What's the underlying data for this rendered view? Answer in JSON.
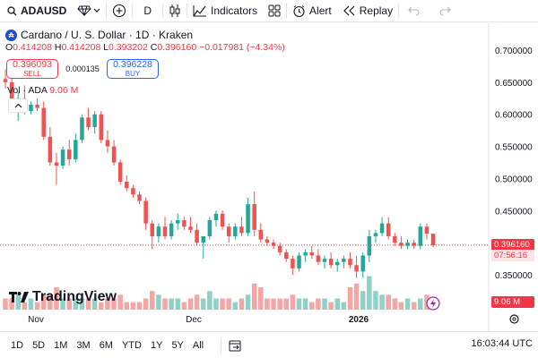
{
  "toolbar": {
    "symbol": "ADAUSD",
    "interval": "D",
    "indicators_label": "Indicators",
    "alert_label": "Alert",
    "replay_label": "Replay"
  },
  "legend": {
    "title": "Cardano / U. S. Dollar · 1D · Kraken",
    "open_label": "O",
    "open": "0.414208",
    "high_label": "H",
    "high": "0.414208",
    "low_label": "L",
    "low": "0.393202",
    "close_label": "C",
    "close": "0.396160",
    "change": "−0.017981 (−4.34%)",
    "logo_letter": "₳"
  },
  "trade": {
    "sell_price": "0.396093",
    "sell_label": "SELL",
    "spread": "0.000135",
    "buy_price": "0.396228",
    "buy_label": "BUY"
  },
  "volume_legend": {
    "label": "Vol · ADA",
    "value": "9.06 M"
  },
  "price_axis": [
    "0.700000",
    "0.650000",
    "0.600000",
    "0.550000",
    "0.500000",
    "0.450000",
    "0.350000"
  ],
  "tags": {
    "last_price": "0.396160",
    "countdown": "07:56:16",
    "volume": "9.06 M"
  },
  "time_axis": [
    "Nov",
    "Dec",
    "2026"
  ],
  "watermark": "TradingView",
  "ranges": [
    "1D",
    "5D",
    "1M",
    "3M",
    "6M",
    "YTD",
    "1Y",
    "5Y",
    "All"
  ],
  "clock": "16:03:44 UTC",
  "colors": {
    "up": "#26a69a",
    "down": "#ef5350",
    "up_vol": "#8fd0c7",
    "down_vol": "#f5a5a3"
  },
  "chart_data": {
    "type": "candlestick",
    "price_range": [
      0.3,
      0.72
    ],
    "candles": [
      [
        0.655,
        0.67,
        0.64,
        0.65
      ],
      [
        0.65,
        0.66,
        0.61,
        0.615
      ],
      [
        0.615,
        0.635,
        0.59,
        0.625
      ],
      [
        0.625,
        0.645,
        0.6,
        0.605
      ],
      [
        0.605,
        0.62,
        0.6,
        0.615
      ],
      [
        0.615,
        0.625,
        0.605,
        0.61
      ],
      [
        0.61,
        0.62,
        0.56,
        0.565
      ],
      [
        0.565,
        0.58,
        0.52,
        0.525
      ],
      [
        0.525,
        0.54,
        0.49,
        0.52
      ],
      [
        0.52,
        0.55,
        0.515,
        0.545
      ],
      [
        0.545,
        0.56,
        0.52,
        0.53
      ],
      [
        0.53,
        0.57,
        0.525,
        0.56
      ],
      [
        0.56,
        0.6,
        0.555,
        0.595
      ],
      [
        0.595,
        0.61,
        0.575,
        0.58
      ],
      [
        0.58,
        0.605,
        0.57,
        0.6
      ],
      [
        0.6,
        0.605,
        0.555,
        0.56
      ],
      [
        0.56,
        0.575,
        0.54,
        0.55
      ],
      [
        0.55,
        0.56,
        0.52,
        0.525
      ],
      [
        0.525,
        0.53,
        0.49,
        0.495
      ],
      [
        0.495,
        0.505,
        0.48,
        0.485
      ],
      [
        0.485,
        0.49,
        0.47,
        0.475
      ],
      [
        0.475,
        0.48,
        0.46,
        0.465
      ],
      [
        0.465,
        0.47,
        0.42,
        0.43
      ],
      [
        0.43,
        0.435,
        0.39,
        0.41
      ],
      [
        0.41,
        0.43,
        0.4,
        0.425
      ],
      [
        0.425,
        0.44,
        0.405,
        0.41
      ],
      [
        0.41,
        0.435,
        0.405,
        0.43
      ],
      [
        0.43,
        0.445,
        0.42,
        0.435
      ],
      [
        0.435,
        0.44,
        0.42,
        0.425
      ],
      [
        0.425,
        0.44,
        0.415,
        0.42
      ],
      [
        0.42,
        0.43,
        0.395,
        0.4
      ],
      [
        0.4,
        0.41,
        0.375,
        0.41
      ],
      [
        0.41,
        0.44,
        0.405,
        0.435
      ],
      [
        0.435,
        0.45,
        0.425,
        0.445
      ],
      [
        0.445,
        0.45,
        0.42,
        0.425
      ],
      [
        0.425,
        0.43,
        0.4,
        0.41
      ],
      [
        0.41,
        0.43,
        0.405,
        0.425
      ],
      [
        0.425,
        0.44,
        0.41,
        0.415
      ],
      [
        0.415,
        0.47,
        0.41,
        0.46
      ],
      [
        0.46,
        0.48,
        0.41,
        0.42
      ],
      [
        0.42,
        0.43,
        0.4,
        0.405
      ],
      [
        0.405,
        0.41,
        0.395,
        0.4
      ],
      [
        0.4,
        0.405,
        0.39,
        0.395
      ],
      [
        0.395,
        0.4,
        0.38,
        0.385
      ],
      [
        0.385,
        0.39,
        0.37,
        0.375
      ],
      [
        0.375,
        0.38,
        0.35,
        0.36
      ],
      [
        0.36,
        0.385,
        0.355,
        0.38
      ],
      [
        0.38,
        0.39,
        0.37,
        0.385
      ],
      [
        0.385,
        0.395,
        0.375,
        0.38
      ],
      [
        0.38,
        0.39,
        0.365,
        0.37
      ],
      [
        0.37,
        0.38,
        0.36,
        0.375
      ],
      [
        0.375,
        0.385,
        0.36,
        0.365
      ],
      [
        0.365,
        0.375,
        0.355,
        0.37
      ],
      [
        0.37,
        0.38,
        0.36,
        0.375
      ],
      [
        0.375,
        0.385,
        0.36,
        0.365
      ],
      [
        0.365,
        0.38,
        0.345,
        0.355
      ],
      [
        0.355,
        0.385,
        0.345,
        0.38
      ],
      [
        0.38,
        0.42,
        0.37,
        0.41
      ],
      [
        0.41,
        0.42,
        0.4,
        0.415
      ],
      [
        0.415,
        0.44,
        0.41,
        0.43
      ],
      [
        0.43,
        0.44,
        0.405,
        0.41
      ],
      [
        0.41,
        0.415,
        0.395,
        0.4
      ],
      [
        0.4,
        0.41,
        0.39,
        0.395
      ],
      [
        0.395,
        0.405,
        0.39,
        0.4
      ],
      [
        0.4,
        0.405,
        0.39,
        0.395
      ],
      [
        0.395,
        0.43,
        0.39,
        0.425
      ],
      [
        0.425,
        0.43,
        0.405,
        0.414
      ],
      [
        0.414,
        0.414,
        0.393,
        0.396
      ]
    ],
    "volumes": [
      3,
      3,
      4,
      2,
      3,
      2,
      4,
      4,
      6,
      3,
      3,
      3,
      3,
      3,
      3,
      2,
      3,
      3,
      4,
      2,
      2,
      2,
      3,
      5,
      4,
      3,
      3,
      3,
      2,
      3,
      4,
      3,
      5,
      3,
      3,
      3,
      2,
      3,
      4,
      7,
      6,
      3,
      3,
      3,
      3,
      4,
      3,
      3,
      2,
      3,
      3,
      2,
      3,
      2,
      6,
      7,
      5,
      9,
      5,
      4,
      4,
      3,
      2,
      3,
      2,
      3,
      4,
      2
    ],
    "volume_range": [
      0,
      12
    ]
  }
}
